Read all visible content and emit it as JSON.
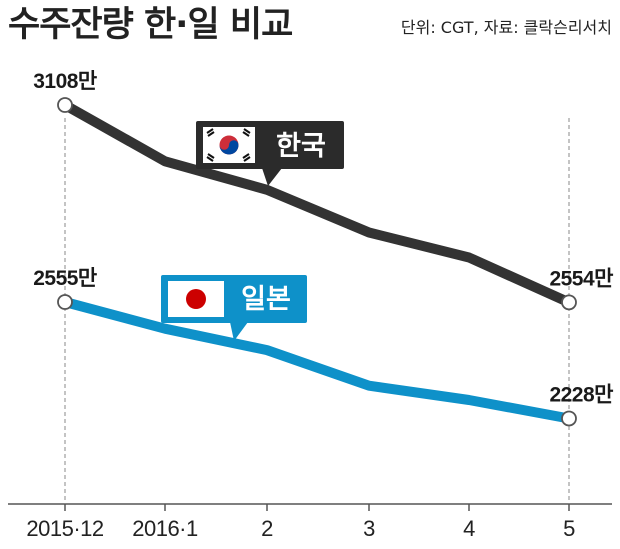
{
  "chart_data": {
    "type": "line",
    "title": "수주잔량 한·일 비교",
    "source": "단위: CGT, 자료: 클락슨리서치",
    "categories": [
      "2015·12",
      "2016·1",
      "2",
      "3",
      "4",
      "5"
    ],
    "series": [
      {
        "name": "한국",
        "color": "#333333",
        "flag": "korea-flag-icon",
        "values": [
          3108,
          2950,
          2870,
          2750,
          2680,
          2554
        ],
        "labels": [
          "3108만",
          "",
          "",
          "",
          "",
          "2554만"
        ]
      },
      {
        "name": "일본",
        "color": "#0e91c9",
        "flag": "japan-flag-icon",
        "values": [
          2555,
          2480,
          2420,
          2320,
          2280,
          2228
        ],
        "labels": [
          "2555만",
          "",
          "",
          "",
          "",
          "2228만"
        ]
      }
    ],
    "ylim": [
      2100,
      3200
    ],
    "grid": false,
    "legend_placement": "callouts near lines"
  }
}
